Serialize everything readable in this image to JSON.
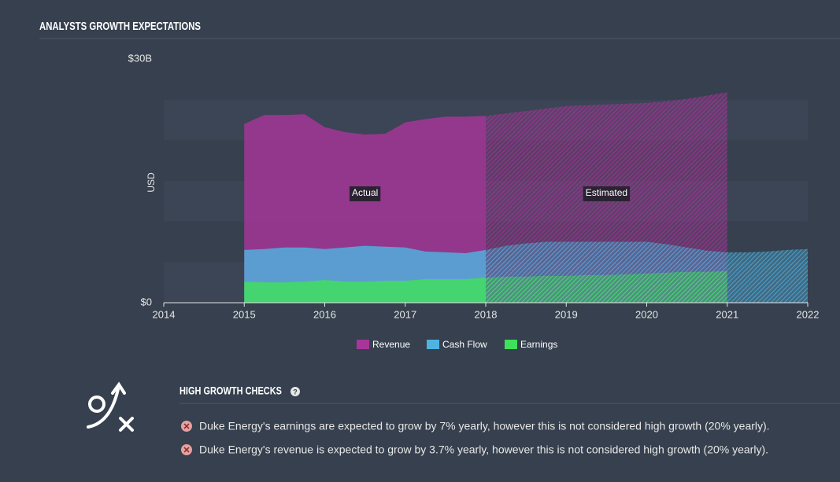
{
  "header": {
    "title": "ANALYSTS GROWTH EXPECTATIONS"
  },
  "chart_data": {
    "type": "area",
    "y_label": "USD",
    "x": [
      2015,
      2015.25,
      2015.5,
      2015.75,
      2016,
      2016.25,
      2016.5,
      2016.75,
      2017,
      2017.25,
      2017.5,
      2017.75,
      2018,
      2018.25,
      2018.5,
      2018.75,
      2019,
      2019.25,
      2019.5,
      2019.75,
      2020,
      2020.25,
      2020.5,
      2020.75,
      2021,
      2021.25,
      2021.5,
      2021.75,
      2022
    ],
    "series": [
      {
        "name": "Revenue",
        "color": "#a8369a",
        "values": [
          22.0,
          23.1,
          23.1,
          23.2,
          21.6,
          21.0,
          20.7,
          20.8,
          22.2,
          22.6,
          22.9,
          22.9,
          23.0,
          23.3,
          23.6,
          23.9,
          24.2,
          24.3,
          24.4,
          24.5,
          24.6,
          24.8,
          25.1,
          25.5,
          25.9,
          null,
          null,
          null,
          null
        ]
      },
      {
        "name": "Cash Flow",
        "color": "#4fb3e0",
        "values": [
          6.5,
          6.6,
          6.8,
          6.8,
          6.6,
          6.8,
          7.0,
          6.9,
          6.8,
          6.3,
          6.2,
          6.1,
          6.5,
          7.0,
          7.3,
          7.5,
          7.5,
          7.5,
          7.5,
          7.5,
          7.5,
          7.2,
          6.8,
          6.4,
          6.2,
          6.2,
          6.3,
          6.5,
          6.6
        ]
      },
      {
        "name": "Earnings",
        "color": "#3fe15a",
        "values": [
          2.6,
          2.5,
          2.5,
          2.6,
          2.8,
          2.6,
          2.6,
          2.7,
          2.7,
          2.9,
          2.9,
          2.9,
          3.1,
          3.2,
          3.2,
          3.3,
          3.3,
          3.4,
          3.4,
          3.5,
          3.6,
          3.7,
          3.8,
          3.8,
          3.9,
          null,
          null,
          null,
          null
        ]
      }
    ],
    "forecast_from": 2018,
    "annotations": [
      "Actual",
      "Estimated"
    ],
    "xlim": [
      2014,
      2022
    ],
    "xticks": [
      2014,
      2015,
      2016,
      2017,
      2018,
      2019,
      2020,
      2021,
      2022
    ],
    "ylim": [
      0,
      30
    ],
    "yticks": [
      {
        "value": 0,
        "label": "$0"
      },
      {
        "value": 30,
        "label": "$30B"
      }
    ],
    "legend": "bottom"
  },
  "checks": {
    "title": "HIGH GROWTH CHECKS",
    "items": [
      "Duke Energy's earnings are expected to grow by 7% yearly, however this is not considered high growth (20% yearly).",
      "Duke Energy's revenue is expected to grow by 3.7% yearly, however this is not considered high growth (20% yearly)."
    ]
  }
}
